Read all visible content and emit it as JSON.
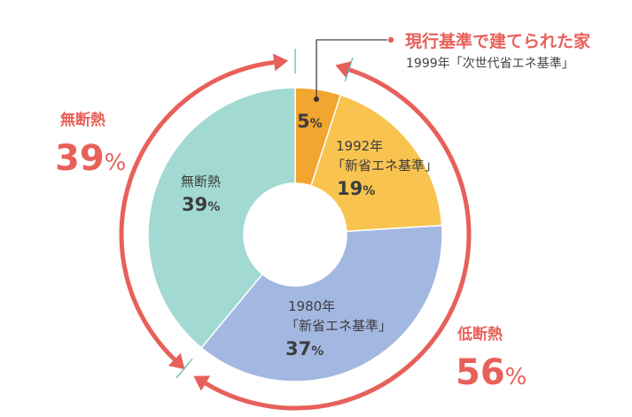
{
  "chart_data": {
    "type": "pie",
    "donut": true,
    "categories": [
      "現行基準",
      "1992年「新省エネ基準」",
      "1980年「新省エネ基準」",
      "無断熱"
    ],
    "values": [
      5,
      19,
      37,
      39
    ],
    "unit": "%",
    "colors": [
      "#f2a52f",
      "#f8c34f",
      "#a3b8e0",
      "#a2d9d2"
    ],
    "slice_labels": [
      {
        "lines": [],
        "value": "5",
        "unit": "%"
      },
      {
        "lines": [
          "1992年",
          "「新省エネ基準」"
        ],
        "value": "19",
        "unit": "%"
      },
      {
        "lines": [
          "1980年",
          "「新省エネ基準」"
        ],
        "value": "37",
        "unit": "%"
      },
      {
        "lines": [
          "無断熱"
        ],
        "value": "39",
        "unit": "%"
      }
    ],
    "callout": {
      "title": "現行基準で建てられた家",
      "subtitle": "1999年「次世代省エネ基準」"
    },
    "groups": [
      {
        "label": "無断熱",
        "value": "39",
        "unit": "%"
      },
      {
        "label": "低断熱",
        "value": "56",
        "unit": "%"
      }
    ],
    "accent_color": "#e8605a"
  }
}
